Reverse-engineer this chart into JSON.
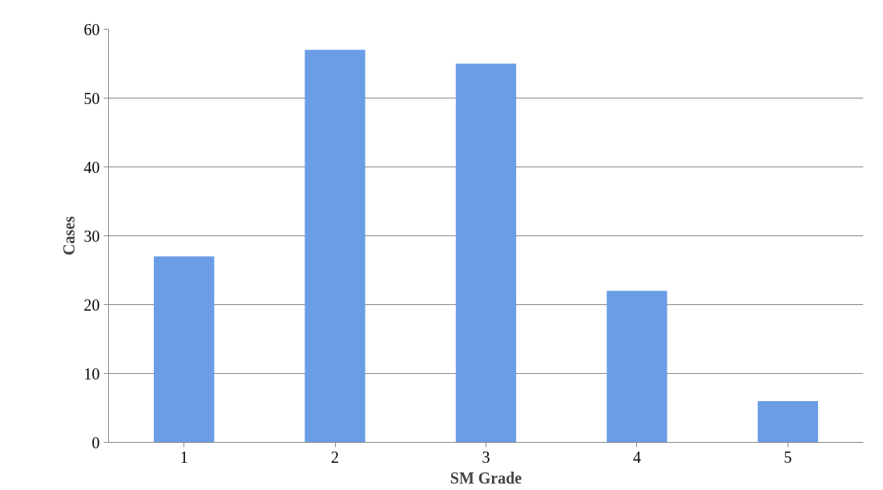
{
  "chart_data": {
    "type": "bar",
    "xlabel": "SM Grade",
    "ylabel": "Cases",
    "categories": [
      "1",
      "2",
      "3",
      "4",
      "5"
    ],
    "values": [
      27,
      57,
      55,
      22,
      6
    ],
    "color": "#6a9de6",
    "ylim": [
      0,
      60
    ],
    "yticks": [
      0,
      10,
      20,
      30,
      40,
      50,
      60
    ],
    "grid": "y"
  }
}
